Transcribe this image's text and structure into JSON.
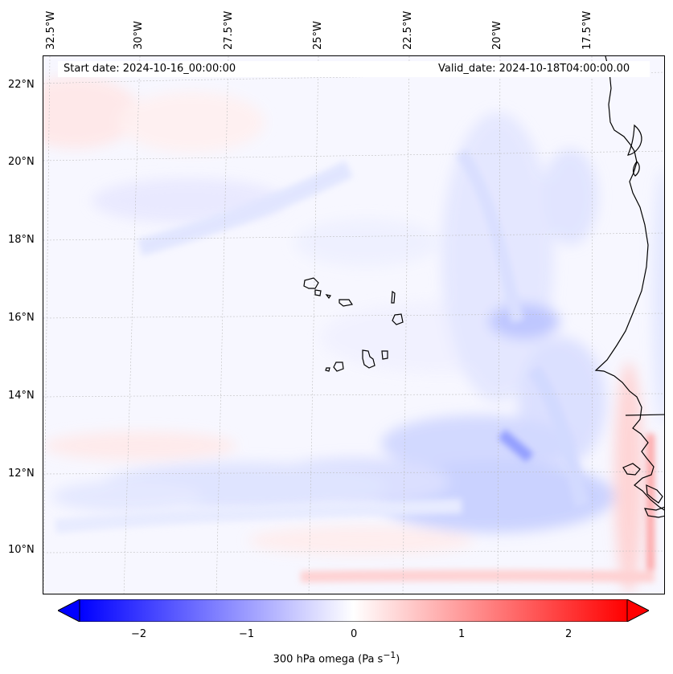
{
  "header": {
    "start_date": "Start date: 2024-10-16_00:00:00",
    "valid_date": "Valid_date: 2024-10-18T04:00:00.00"
  },
  "map": {
    "lon_labels": [
      "32.5°W",
      "30°W",
      "27.5°W",
      "25°W",
      "22.5°W",
      "20°W",
      "17.5°W"
    ],
    "lat_labels": [
      "22°N",
      "20°N",
      "18°N",
      "16°N",
      "14°N",
      "12°N",
      "10°N"
    ]
  },
  "colorbar": {
    "ticks": [
      "−2",
      "−1",
      "0",
      "1",
      "2"
    ],
    "label_prefix": "300 hPa omega (Pa s",
    "label_exp": "−1",
    "label_suffix": ")",
    "colors": {
      "neg": "#0000ff",
      "zero": "#ffffff",
      "pos": "#ff0000"
    }
  }
}
